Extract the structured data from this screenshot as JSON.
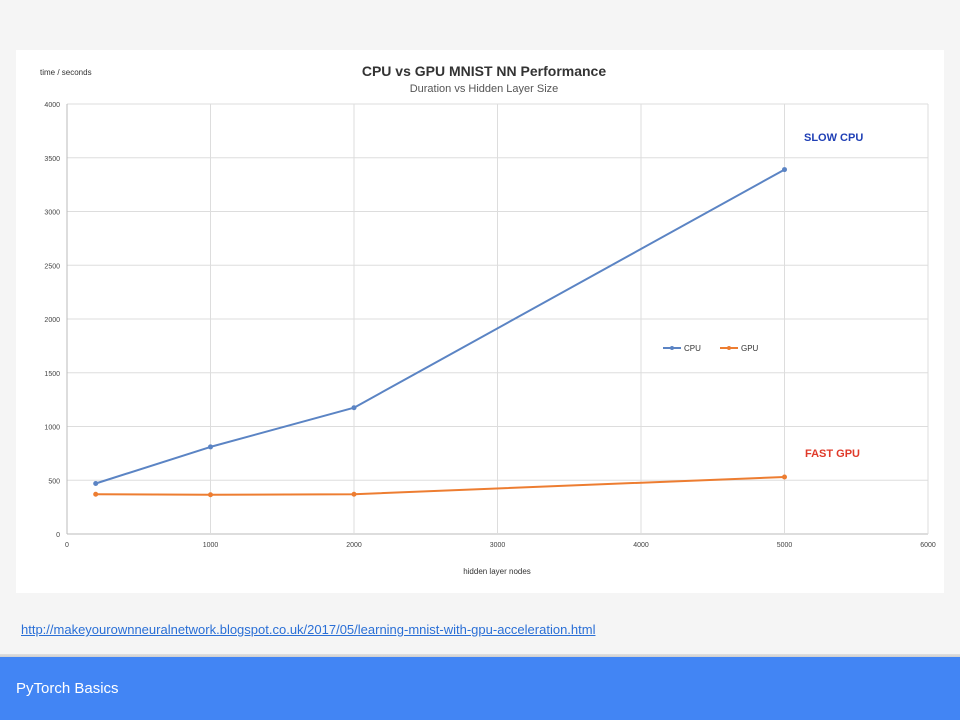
{
  "slide": {
    "source_link": "http://makeyourownneuralnetwork.blogspot.co.uk/2017/05/learning-mnist-with-gpu-acceleration.html",
    "footer_title": "PyTorch Basics"
  },
  "chart_data": {
    "type": "line",
    "title": "CPU vs GPU MNIST NN Performance",
    "subtitle": "Duration vs Hidden Layer Size",
    "xlabel": "hidden layer nodes",
    "ylabel": "time / seconds",
    "xlim": [
      0,
      6000
    ],
    "ylim": [
      0,
      4000
    ],
    "xticks": [
      0,
      1000,
      2000,
      3000,
      4000,
      5000,
      6000
    ],
    "yticks": [
      0,
      500,
      1000,
      1500,
      2000,
      2500,
      3000,
      3500,
      4000
    ],
    "grid": true,
    "legend": "center-right",
    "series": [
      {
        "name": "CPU",
        "color": "#5b84c4",
        "points": [
          [
            200,
            470
          ],
          [
            1000,
            810
          ],
          [
            2000,
            1175
          ],
          [
            5000,
            3390
          ]
        ]
      },
      {
        "name": "GPU",
        "color": "#ed7d31",
        "points": [
          [
            200,
            370
          ],
          [
            1000,
            365
          ],
          [
            2000,
            370
          ],
          [
            5000,
            530
          ]
        ]
      }
    ],
    "annotations": [
      {
        "text": "SLOW CPU",
        "color": "#1f3fb5",
        "near": "cpu-end"
      },
      {
        "text": "FAST GPU",
        "color": "#e03a2a",
        "near": "gpu-end"
      }
    ]
  }
}
